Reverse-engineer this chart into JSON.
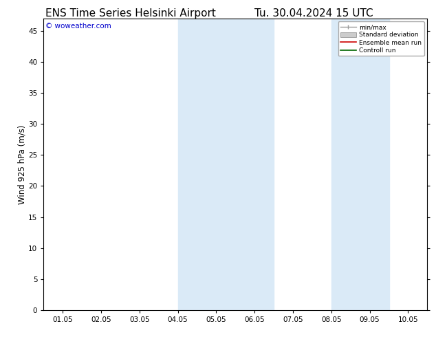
{
  "title_left": "ENS Time Series Helsinki Airport",
  "title_right": "Tu. 30.04.2024 15 UTC",
  "ylabel": "Wind 925 hPa (m/s)",
  "watermark": "© woweather.com",
  "x_tick_labels": [
    "01.05",
    "02.05",
    "03.05",
    "04.05",
    "05.05",
    "06.05",
    "07.05",
    "08.05",
    "09.05",
    "10.05"
  ],
  "x_tick_positions": [
    0,
    1,
    2,
    3,
    4,
    5,
    6,
    7,
    8,
    9
  ],
  "ylim": [
    0,
    47
  ],
  "yticks": [
    0,
    5,
    10,
    15,
    20,
    25,
    30,
    35,
    40,
    45
  ],
  "shaded_bands": [
    {
      "x_start": 3.0,
      "x_end": 3.5
    },
    {
      "x_start": 4.0,
      "x_end": 4.5
    },
    {
      "x_start": 4.5,
      "x_end": 5.5
    },
    {
      "x_start": 7.0,
      "x_end": 7.5
    },
    {
      "x_start": 8.0,
      "x_end": 8.5
    }
  ],
  "shade_color": "#daeaf7",
  "background_color": "#ffffff",
  "legend_items": [
    {
      "label": "min/max",
      "color": "#999999",
      "lw": 1.0,
      "style": "minmax"
    },
    {
      "label": "Standard deviation",
      "color": "#cccccc",
      "lw": 6,
      "style": "band"
    },
    {
      "label": "Ensemble mean run",
      "color": "#cc0000",
      "lw": 1.2,
      "style": "line"
    },
    {
      "label": "Controll run",
      "color": "#006600",
      "lw": 1.2,
      "style": "line"
    }
  ],
  "title_fontsize": 11,
  "tick_fontsize": 7.5,
  "ylabel_fontsize": 8.5,
  "watermark_color": "#0000cc",
  "xlim": [
    -0.5,
    9.5
  ]
}
